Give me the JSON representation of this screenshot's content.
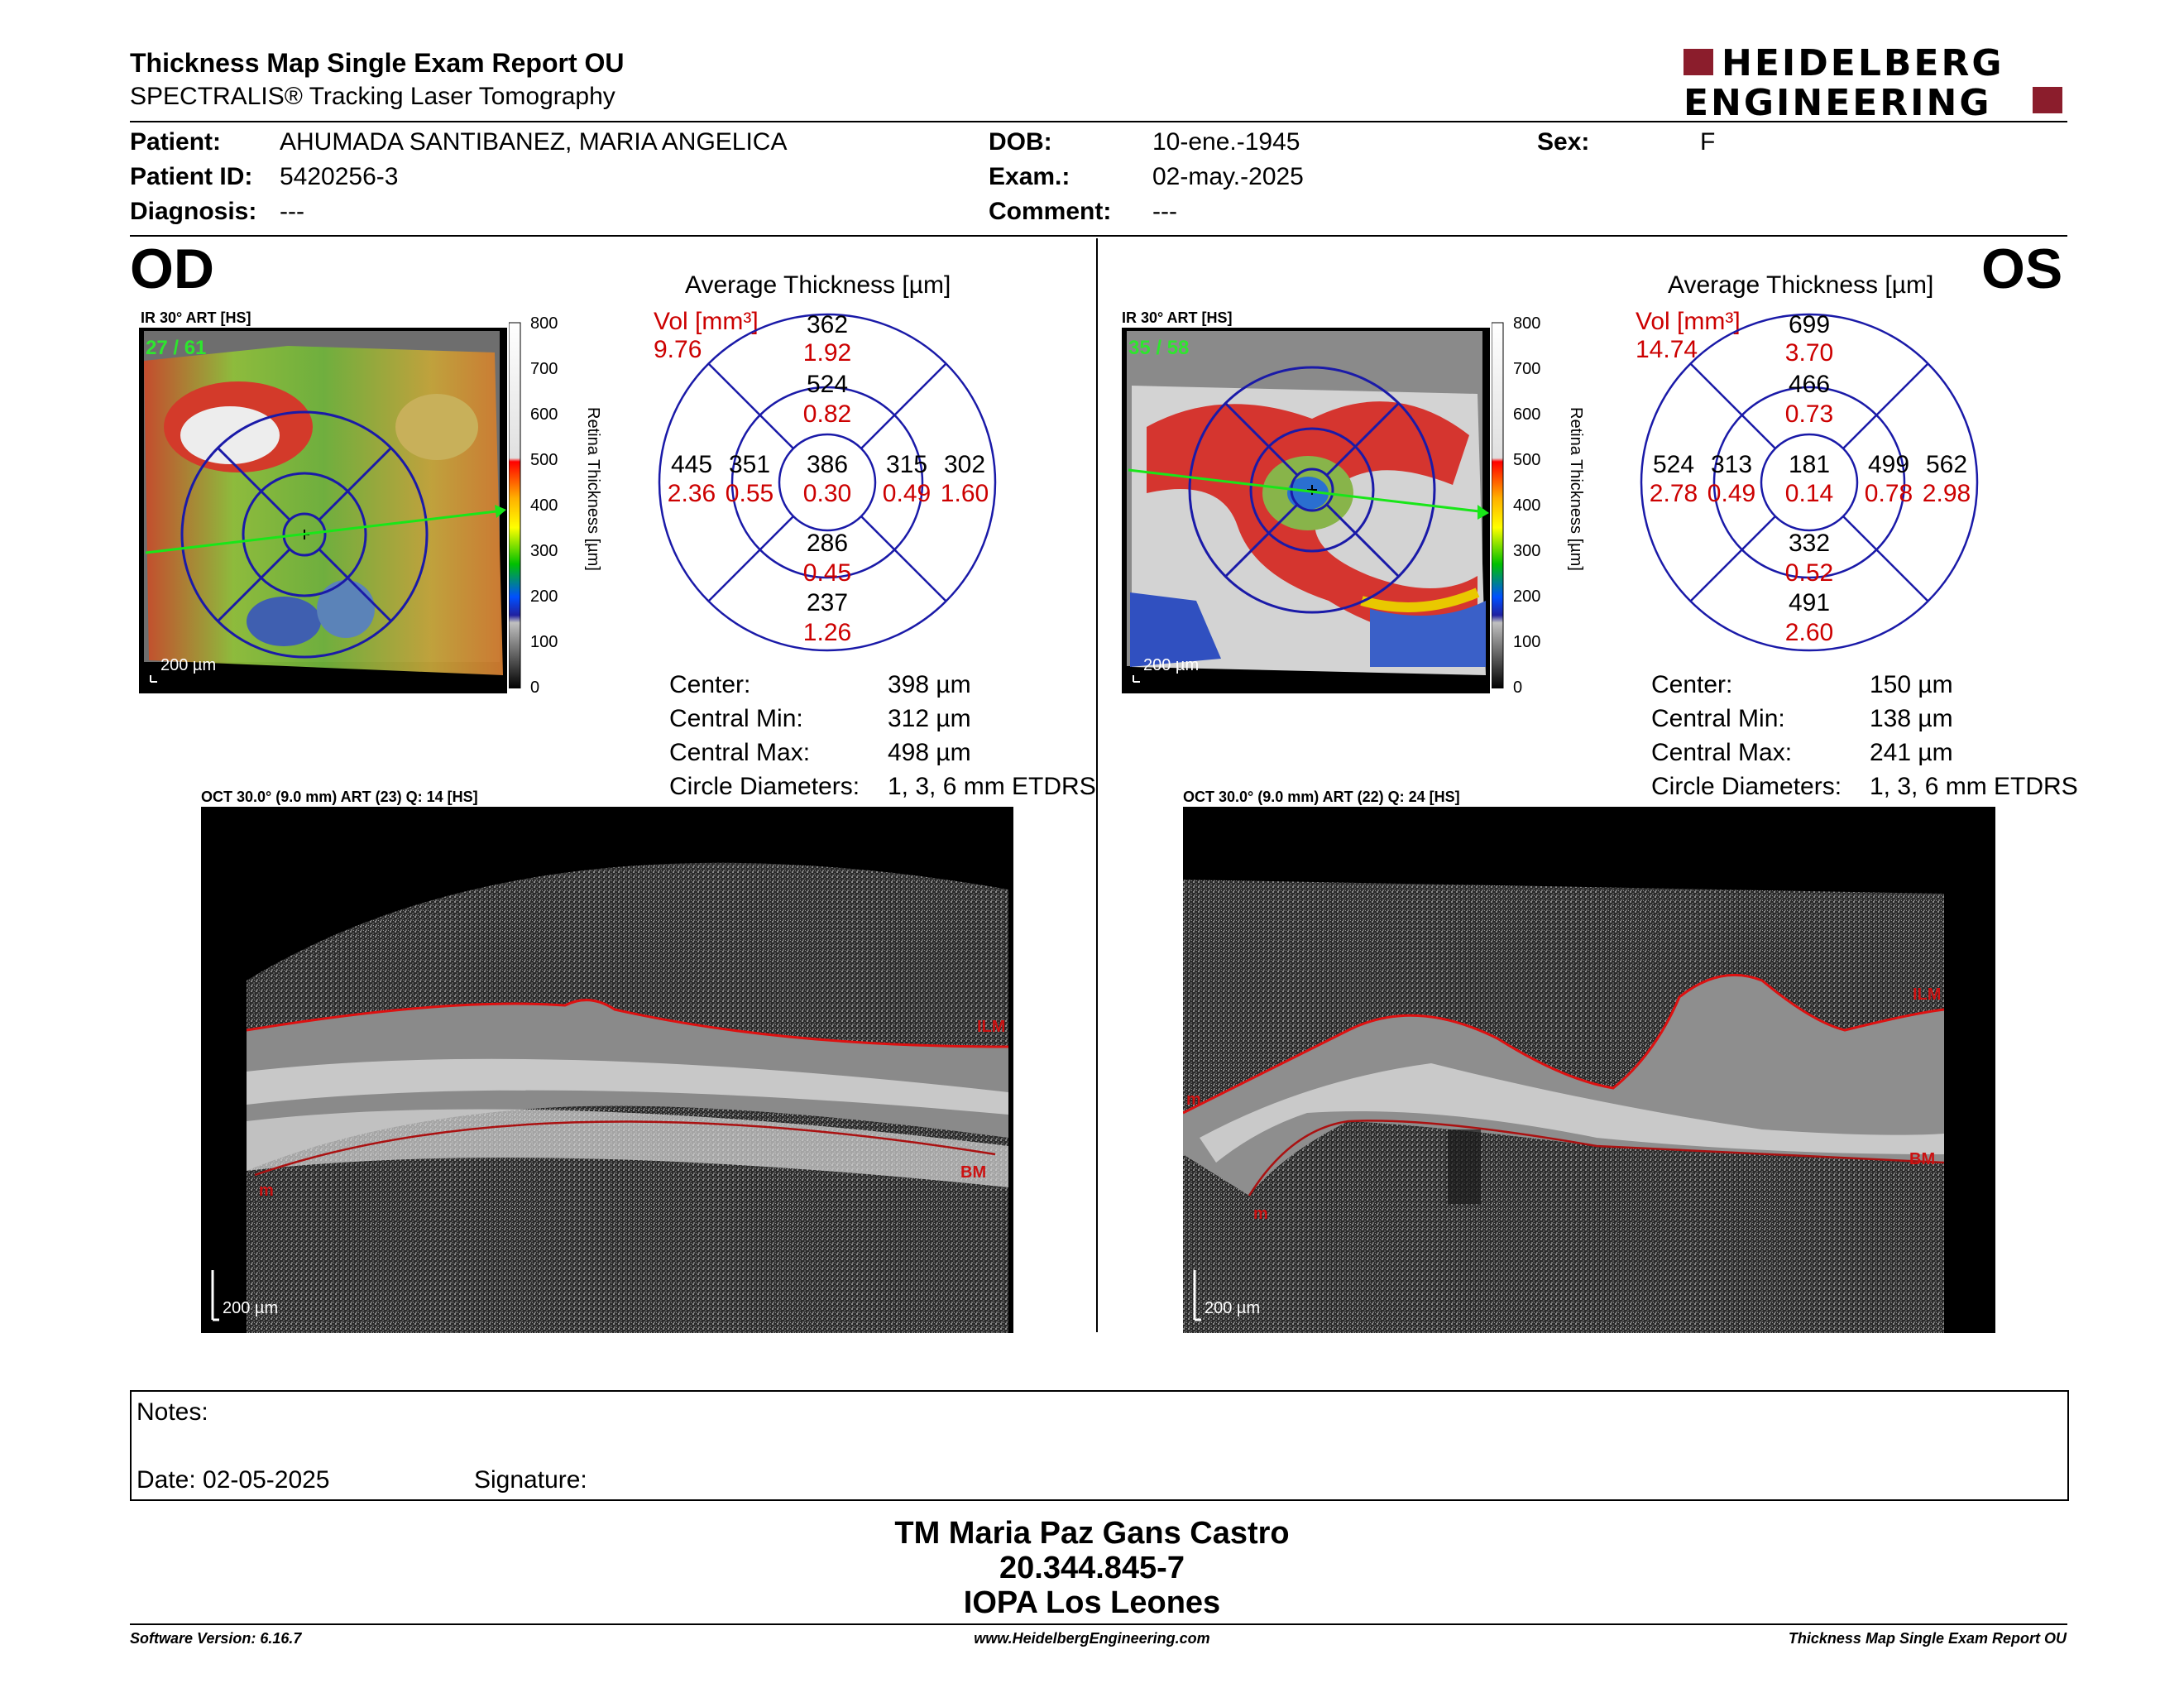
{
  "header": {
    "title": "Thickness Map Single Exam Report OU",
    "subtitle": "SPECTRALIS® Tracking Laser Tomography",
    "logo_line1": "HEIDELBERG",
    "logo_line2": "ENGINEERING"
  },
  "patient": {
    "patient_label": "Patient:",
    "patient_value": "AHUMADA SANTIBANEZ, MARIA ANGELICA",
    "id_label": "Patient ID:",
    "id_value": "5420256-3",
    "diagnosis_label": "Diagnosis:",
    "diagnosis_value": "---",
    "dob_label": "DOB:",
    "dob_value": "10-ene.-1945",
    "exam_label": "Exam.:",
    "exam_value": "02-may.-2025",
    "comment_label": "Comment:",
    "comment_value": "---",
    "sex_label": "Sex:",
    "sex_value": "F"
  },
  "od": {
    "eye": "OD",
    "ir_caption": "IR 30° ART [HS]",
    "frame": "27 / 61",
    "scale": "200 µm",
    "avg_title": "Average Thickness [µm]",
    "vol_label": "Vol [mm³]",
    "vol_total": "9.76",
    "grid": {
      "outer_sup": {
        "t": "362",
        "v": "1.92"
      },
      "inner_sup": {
        "t": "524",
        "v": "0.82"
      },
      "outer_temp": {
        "t": "445",
        "v": "2.36"
      },
      "inner_temp": {
        "t": "351",
        "v": "0.55"
      },
      "center": {
        "t": "386",
        "v": "0.30"
      },
      "inner_nas": {
        "t": "315",
        "v": "0.49"
      },
      "outer_nas": {
        "t": "302",
        "v": "1.60"
      },
      "inner_inf": {
        "t": "286",
        "v": "0.45"
      },
      "outer_inf": {
        "t": "237",
        "v": "1.26"
      }
    },
    "stats": [
      {
        "label": "Center:",
        "value": "398 µm"
      },
      {
        "label": "Central Min:",
        "value": "312 µm"
      },
      {
        "label": "Central Max:",
        "value": "498 µm"
      },
      {
        "label": "Circle Diameters:",
        "value": "1, 3, 6 mm ETDRS"
      }
    ],
    "oct_caption": "OCT 30.0° (9.0 mm) ART (23) Q: 14 [HS]",
    "oct_scale": "200 µm",
    "ilm": "ILM",
    "bm": "BM",
    "m": "m"
  },
  "os": {
    "eye": "OS",
    "ir_caption": "IR 30° ART [HS]",
    "frame": "35 / 58",
    "scale": "200 µm",
    "avg_title": "Average Thickness [µm]",
    "vol_label": "Vol [mm³]",
    "vol_total": "14.74",
    "grid": {
      "outer_sup": {
        "t": "699",
        "v": "3.70"
      },
      "inner_sup": {
        "t": "466",
        "v": "0.73"
      },
      "outer_temp": {
        "t": "524",
        "v": "2.78"
      },
      "inner_temp": {
        "t": "313",
        "v": "0.49"
      },
      "center": {
        "t": "181",
        "v": "0.14"
      },
      "inner_nas": {
        "t": "499",
        "v": "0.78"
      },
      "outer_nas": {
        "t": "562",
        "v": "2.98"
      },
      "inner_inf": {
        "t": "332",
        "v": "0.52"
      },
      "outer_inf": {
        "t": "491",
        "v": "2.60"
      }
    },
    "stats": [
      {
        "label": "Center:",
        "value": "150 µm"
      },
      {
        "label": "Central Min:",
        "value": "138 µm"
      },
      {
        "label": "Central Max:",
        "value": "241 µm"
      },
      {
        "label": "Circle Diameters:",
        "value": "1, 3, 6 mm ETDRS"
      }
    ],
    "oct_caption": "OCT 30.0° (9.0 mm) ART (22) Q: 24 [HS]",
    "oct_scale": "200 µm",
    "ilm": "ILM",
    "bm": "BM",
    "m": "m"
  },
  "colorbar": {
    "ticks": [
      "800",
      "700",
      "600",
      "500",
      "400",
      "300",
      "200",
      "100",
      "0"
    ],
    "label": "Retina Thickness [µm]"
  },
  "notes": {
    "notes_label": "Notes:",
    "date_label": "Date: 02-05-2025",
    "signature_label": "Signature:"
  },
  "signature": {
    "name": "TM Maria Paz Gans Castro",
    "id": "20.344.845-7",
    "org": "IOPA Los Leones"
  },
  "footer": {
    "software": "Software Version: 6.16.7",
    "website": "www.HeidelbergEngineering.com",
    "report": "Thickness Map Single Exam Report OU"
  },
  "colors": {
    "grid_blue": "#1a1aa8",
    "vol_red": "#cc0000",
    "frame_green": "#2ee62e",
    "logo_red": "#8b1d2c"
  }
}
